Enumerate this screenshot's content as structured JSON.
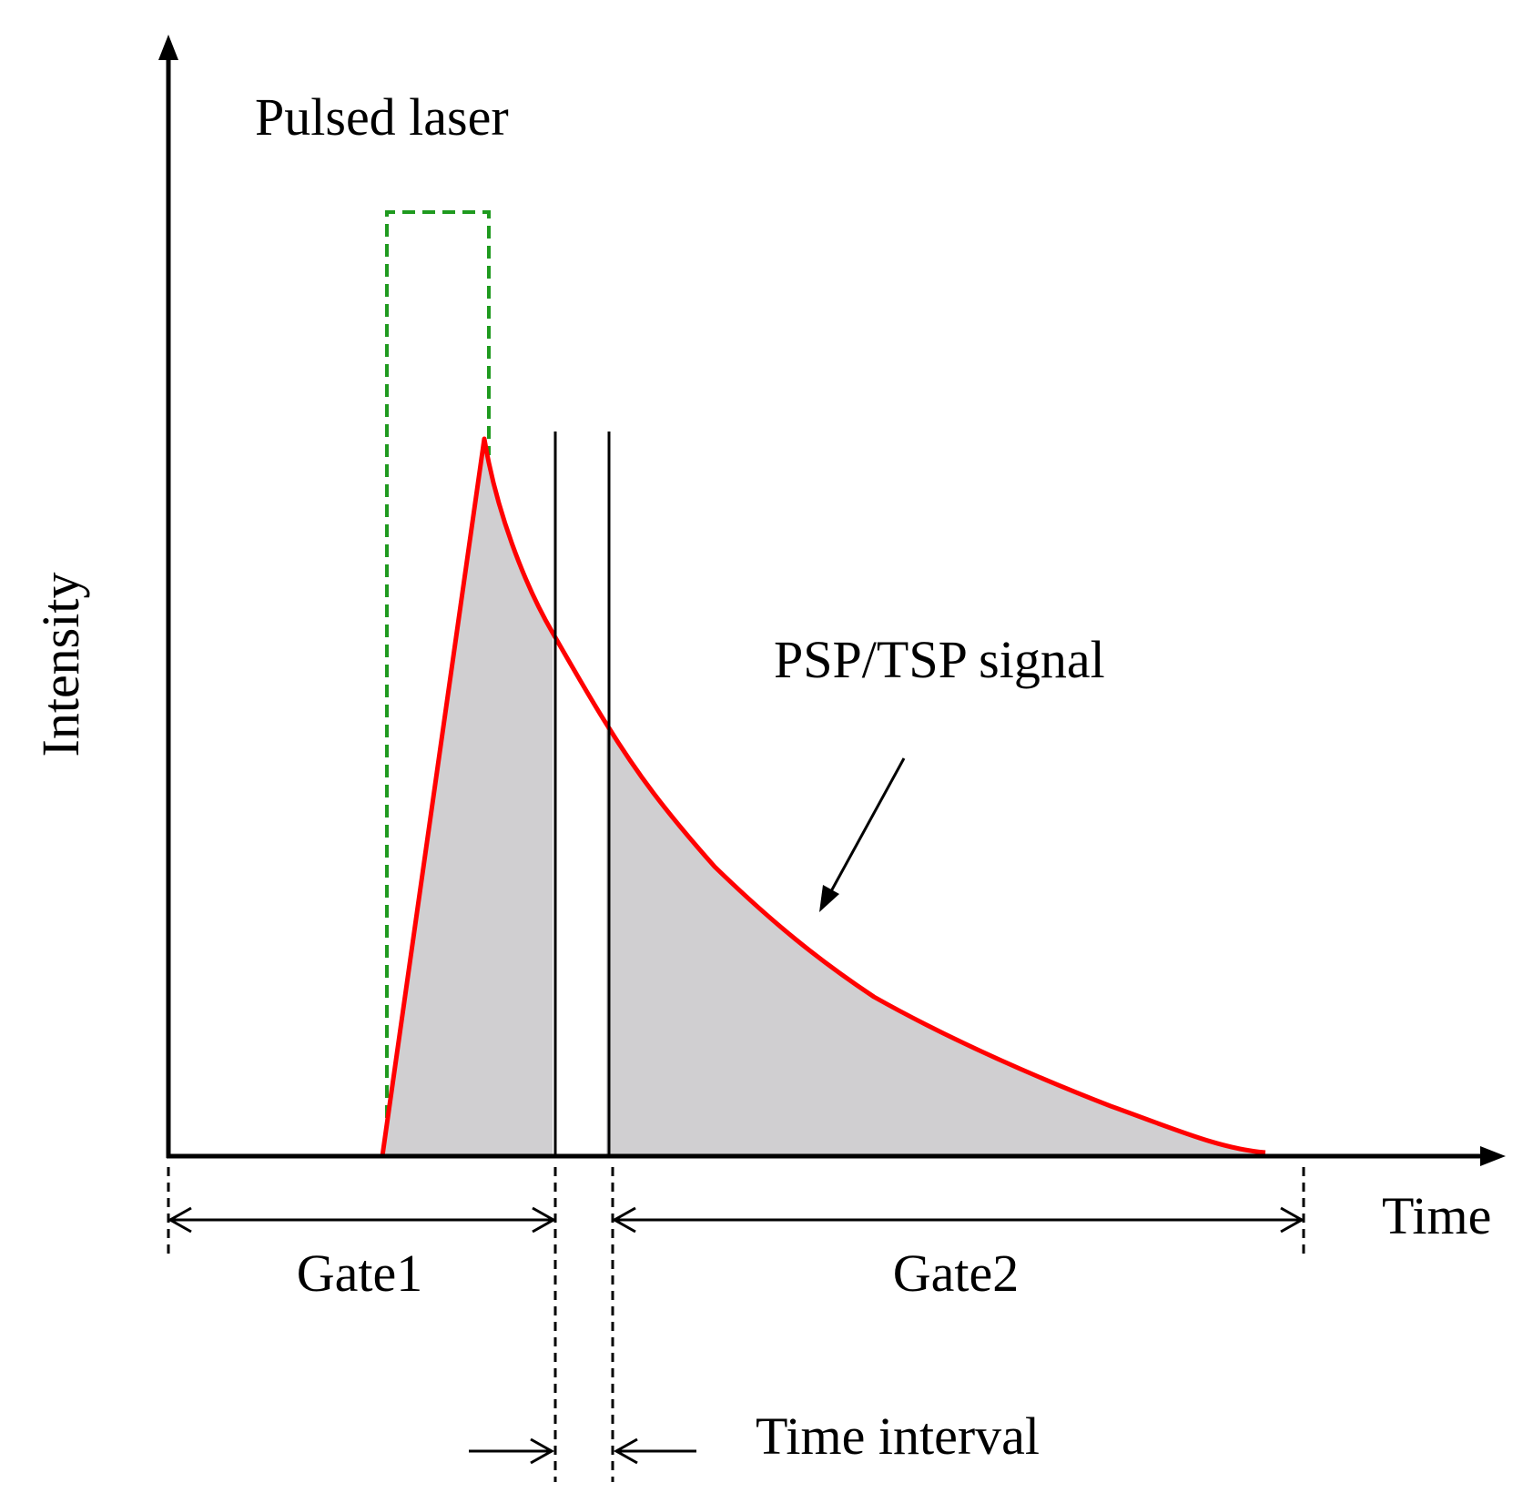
{
  "diagram": {
    "y_axis_label": "Intensity",
    "x_axis_label": "Time",
    "laser_label": "Pulsed laser",
    "signal_label": "PSP/TSP signal",
    "gate1_label": "Gate1",
    "gate2_label": "Gate2",
    "interval_label": "Time interval"
  },
  "colors": {
    "signal": "#ff0000",
    "laser": "#1f9a1f",
    "fill": "#d0cfd1",
    "axis": "#000000"
  }
}
